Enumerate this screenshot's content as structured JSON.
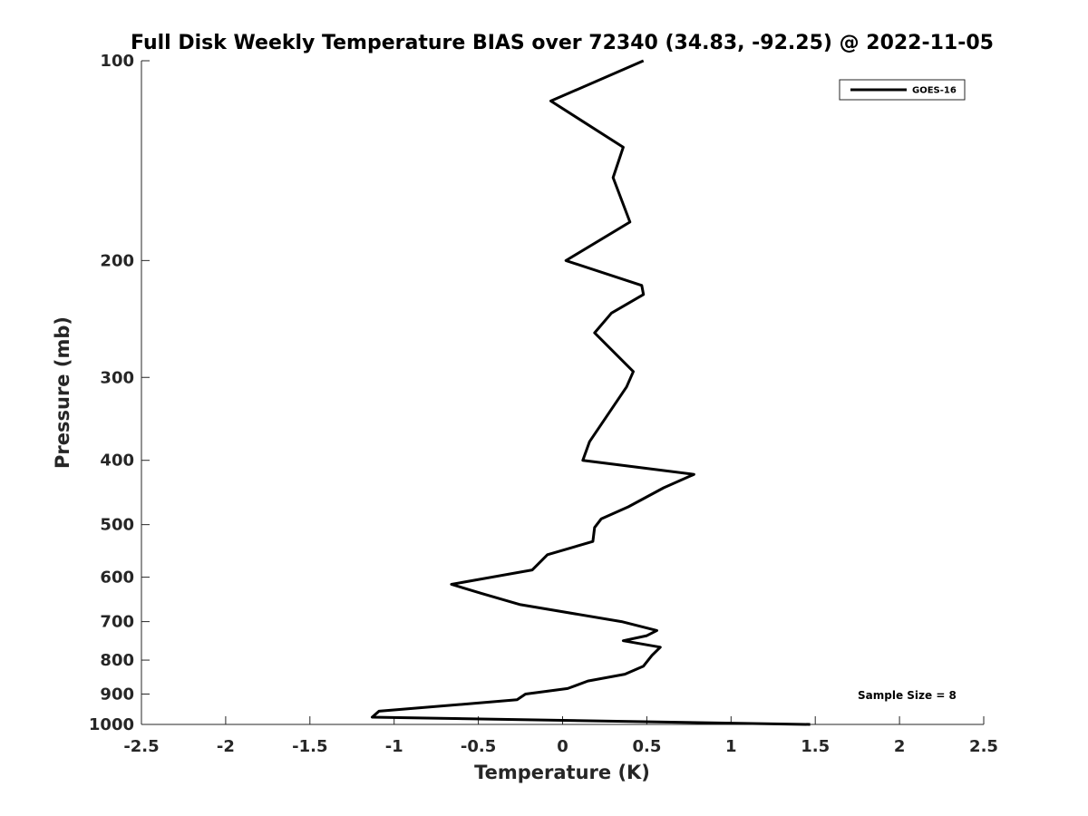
{
  "chart_data": {
    "type": "line",
    "title": "Full Disk Weekly Temperature BIAS over 72340 (34.83, -92.25) @ 2022-11-05",
    "xlabel": "Temperature (K)",
    "ylabel": "Pressure (mb)",
    "xlim": [
      -2.5,
      2.5
    ],
    "ylim": [
      1000,
      100
    ],
    "yscale": "log",
    "y_reversed": true,
    "xticks": [
      -2.5,
      -2,
      -1.5,
      -1,
      -0.5,
      0,
      0.5,
      1,
      1.5,
      2,
      2.5
    ],
    "xtick_labels": [
      "-2.5",
      "-2",
      "-1.5",
      "-1",
      "-0.5",
      "0",
      "0.5",
      "1",
      "1.5",
      "2",
      "2.5"
    ],
    "yticks": [
      100,
      200,
      300,
      400,
      500,
      600,
      700,
      800,
      900,
      1000
    ],
    "ytick_labels": [
      "100",
      "200",
      "300",
      "400",
      "500",
      "600",
      "700",
      "800",
      "900",
      "1000"
    ],
    "grid": false,
    "legend_position": "top-right",
    "annotation": "Sample Size = 8",
    "series": [
      {
        "name": "GOES-16",
        "color": "#000000",
        "x": [
          0.48,
          -0.07,
          0.36,
          0.3,
          0.4,
          0.02,
          0.47,
          0.48,
          0.29,
          0.19,
          0.42,
          0.38,
          0.16,
          0.12,
          0.78,
          0.6,
          0.39,
          0.23,
          0.19,
          0.18,
          -0.09,
          -0.18,
          -0.66,
          -0.48,
          -0.25,
          0.35,
          0.56,
          0.5,
          0.36,
          0.58,
          0.53,
          0.48,
          0.37,
          0.15,
          0.03,
          -0.22,
          -0.27,
          -1.09,
          -1.13,
          1.47
        ],
        "y": [
          100,
          115,
          135,
          150,
          175,
          200,
          218,
          225,
          240,
          257,
          294,
          310,
          375,
          400,
          420,
          440,
          470,
          490,
          505,
          530,
          555,
          585,
          615,
          635,
          660,
          700,
          722,
          735,
          748,
          765,
          787,
          817,
          840,
          860,
          883,
          900,
          918,
          955,
          975,
          1000
        ]
      }
    ]
  }
}
